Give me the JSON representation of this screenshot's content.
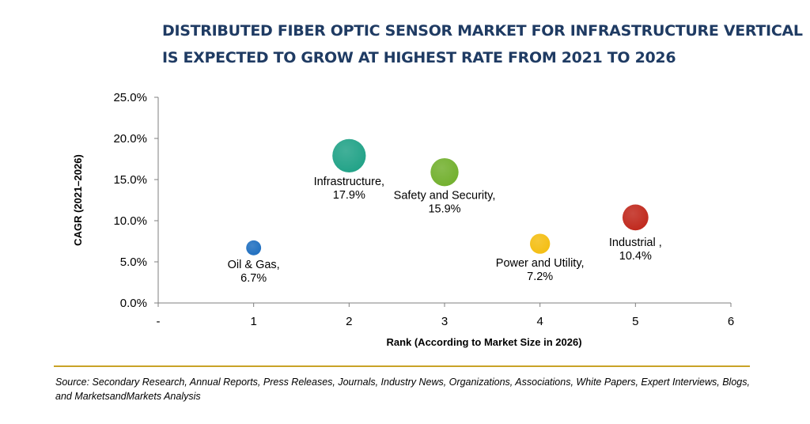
{
  "title_lines": [
    "DISTRIBUTED FIBER OPTIC SENSOR MARKET FOR INFRASTRUCTURE VERTICAL",
    "IS EXPECTED TO GROW AT HIGHEST RATE FROM 2021 TO 2026"
  ],
  "source_text": "Source: Secondary Research, Annual Reports, Press Releases, Journals, Industry News, Organizations, Associations, White Papers, Expert Interviews, Blogs, and MarketsandMarkets Analysis",
  "colors": {
    "rule": "#c9a227",
    "title": "#1f3b63"
  },
  "chart_data": {
    "type": "scatter",
    "bubble": true,
    "xlabel": "Rank (According to Market Size in 2026)",
    "ylabel": "CAGR (2021–2026)",
    "xlim": [
      0,
      6
    ],
    "ylim": [
      0,
      25
    ],
    "x_ticks": [
      "-",
      "1",
      "2",
      "3",
      "4",
      "5",
      "6"
    ],
    "y_ticks": [
      "0.0%",
      "5.0%",
      "10.0%",
      "15.0%",
      "20.0%",
      "25.0%"
    ],
    "grid": false,
    "points": [
      {
        "label_lines": [
          "Oil & Gas,",
          "6.7%"
        ],
        "x": 1,
        "y": 6.7,
        "size": 1,
        "color": "#1f6fc0"
      },
      {
        "label_lines": [
          "Infrastructure,",
          "17.9%"
        ],
        "x": 2,
        "y": 17.9,
        "size": 5,
        "color": "#21a287"
      },
      {
        "label_lines": [
          "Safety and Security,",
          "15.9%"
        ],
        "x": 3,
        "y": 15.9,
        "size": 3.5,
        "color": "#72b02e"
      },
      {
        "label_lines": [
          "Power and Utility,",
          "7.2%"
        ],
        "x": 4,
        "y": 7.2,
        "size": 1.8,
        "color": "#f4be12"
      },
      {
        "label_lines": [
          "Industrial ,",
          "10.4%"
        ],
        "x": 5,
        "y": 10.4,
        "size": 3,
        "color": "#c0281c"
      }
    ]
  }
}
